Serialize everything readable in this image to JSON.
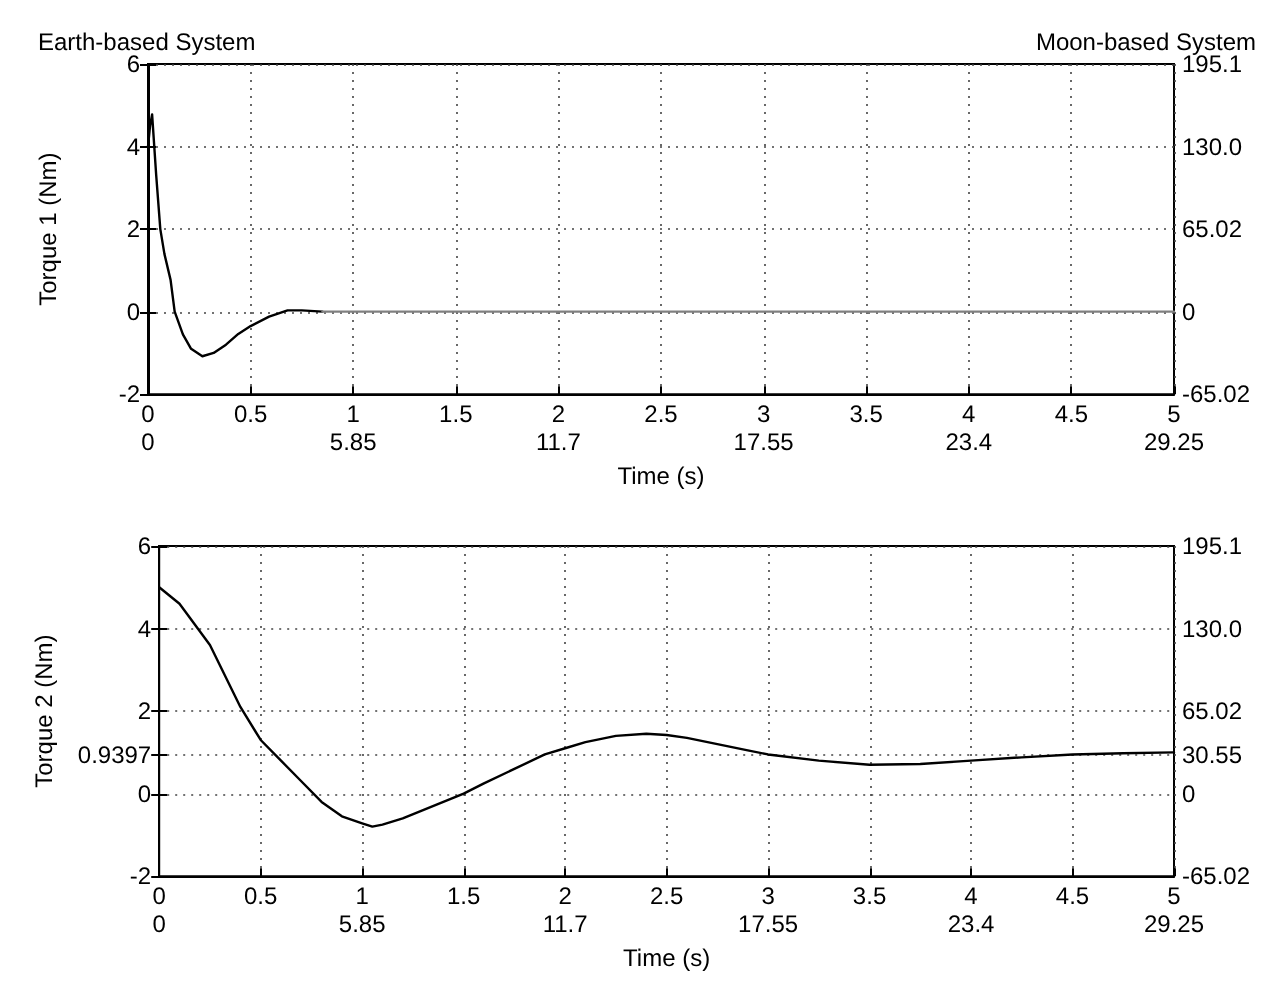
{
  "chart_data": [
    {
      "type": "line",
      "title": "Earth-based System",
      "subtitle": "Moon-based System",
      "ylabel": "Torque 1 (Nm)",
      "xlabel": "Time (s)",
      "grid": true,
      "marker": "none",
      "line_style": "solid",
      "xlim": [
        0,
        5
      ],
      "xticks": [
        0,
        0.5,
        1,
        1.5,
        2,
        2.5,
        3,
        3.5,
        4,
        4.5,
        5
      ],
      "x2lim": [
        0,
        29.25
      ],
      "x2ticks": [
        0,
        5.85,
        11.7,
        17.55,
        23.4,
        29.25
      ],
      "ylim": [
        -2,
        6
      ],
      "yticks": [
        -2,
        0,
        2,
        4,
        6
      ],
      "y2lim": [
        -65.02,
        195.1
      ],
      "y2ticks": [
        -65.02,
        0,
        65.02,
        {
          "value": 130,
          "label": "130.0"
        },
        195.1
      ],
      "series": [
        {
          "color": "#000000",
          "x": [
            0,
            0.01,
            0.02,
            0.04,
            0.06,
            0.08,
            0.11,
            0.13,
            0.17,
            0.21,
            0.265,
            0.32,
            0.38,
            0.44,
            0.5,
            0.59,
            0.68,
            0.75,
            0.85
          ],
          "values": [
            4.0,
            4.5,
            4.78,
            3.3,
            2.0,
            1.4,
            0.77,
            0.0,
            -0.55,
            -0.9,
            -1.08,
            -1.0,
            -0.8,
            -0.54,
            -0.35,
            -0.12,
            0.03,
            0.03,
            0
          ]
        },
        {
          "color": "#808080",
          "x": [
            0.85,
            5
          ],
          "values": [
            0,
            0
          ]
        }
      ]
    },
    {
      "type": "line",
      "ylabel": "Torque 2 (Nm)",
      "xlabel": "Time (s)",
      "grid": true,
      "marker": "none",
      "line_style": "solid",
      "xlim": [
        0,
        5
      ],
      "xticks": [
        0,
        0.5,
        1,
        1.5,
        2,
        2.5,
        3,
        3.5,
        4,
        4.5,
        5
      ],
      "x2lim": [
        0,
        29.25
      ],
      "x2ticks": [
        0,
        5.85,
        11.7,
        17.55,
        23.4,
        29.25
      ],
      "ylim": [
        -2,
        6
      ],
      "yticks": [
        -2,
        0,
        0.9397,
        2,
        4,
        6
      ],
      "y2lim": [
        -65.02,
        195.1
      ],
      "y2ticks": [
        -65.02,
        0,
        30.55,
        65.02,
        {
          "value": 130,
          "label": "130.0"
        },
        195.1
      ],
      "series": [
        {
          "color": "#000000",
          "x": [
            0,
            0.1,
            0.25,
            0.4,
            0.5,
            0.6,
            0.7,
            0.8,
            0.9,
            1.0,
            1.05,
            1.1,
            1.2,
            1.3,
            1.4,
            1.5,
            1.6,
            1.75,
            1.9,
            2.0,
            2.1,
            2.25,
            2.4,
            2.5,
            2.6,
            2.75,
            2.9,
            3.0,
            3.25,
            3.5,
            3.75,
            4.0,
            4.25,
            4.5,
            4.75,
            5.0
          ],
          "values": [
            5.0,
            4.6,
            3.6,
            2.1,
            1.3,
            0.8,
            0.3,
            -0.2,
            -0.55,
            -0.72,
            -0.8,
            -0.75,
            -0.6,
            -0.4,
            -0.2,
            0.0,
            0.25,
            0.6,
            0.95,
            1.1,
            1.25,
            1.4,
            1.45,
            1.42,
            1.35,
            1.2,
            1.05,
            0.95,
            0.8,
            0.7,
            0.72,
            0.8,
            0.88,
            0.95,
            0.98,
            1.0
          ]
        }
      ]
    }
  ]
}
